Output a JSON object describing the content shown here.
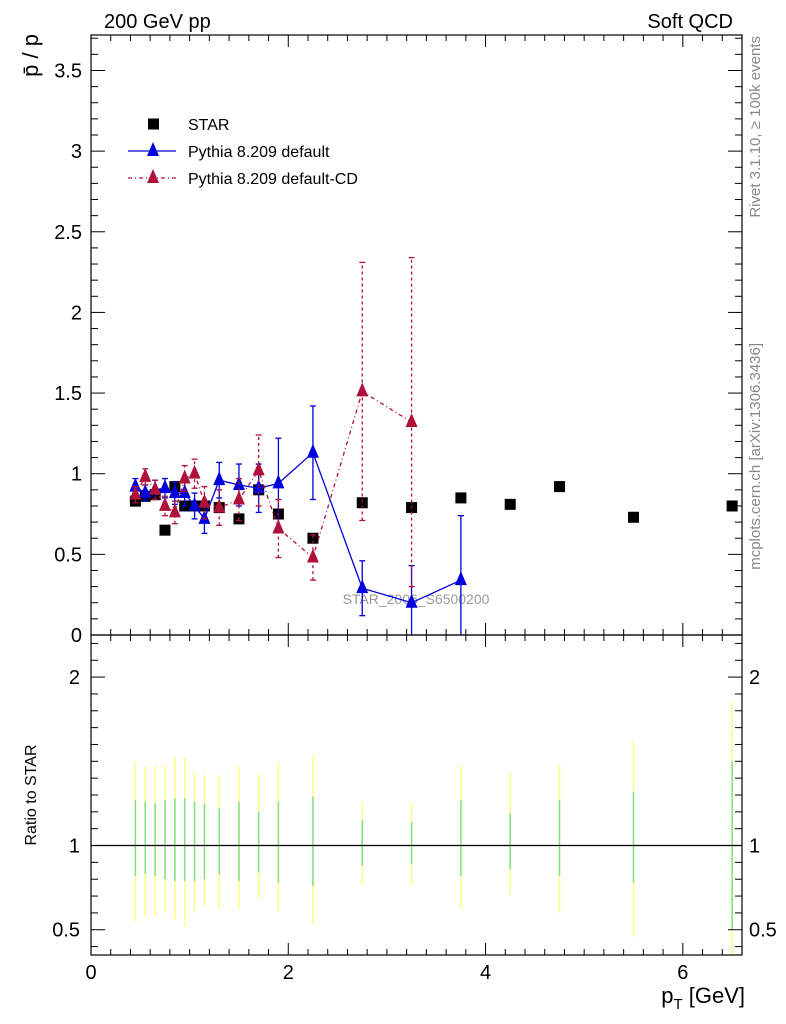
{
  "header": {
    "left": "200 GeV pp",
    "right": "Soft QCD"
  },
  "side_labels": {
    "rivet": "Rivet 3.1.10, ≥ 100k events",
    "mcplots": "mcplots.cern.ch [arXiv:1306.3436]"
  },
  "watermark": "STAR_2006_S6500200",
  "colors": {
    "star": "#000000",
    "pythia_default": "#0000dd",
    "pythia_cd": "#b0103a",
    "band_yellow": "#ffff80",
    "band_green": "#80e080"
  },
  "legend": [
    {
      "key": "star",
      "label": "STAR"
    },
    {
      "key": "pythia_default",
      "label": "Pythia 8.209 default"
    },
    {
      "key": "pythia_cd",
      "label": "Pythia 8.209 default-CD"
    }
  ],
  "chart_data": [
    {
      "type": "scatter",
      "panel": "main",
      "ylabel": "p̄ / p",
      "xlabel": "",
      "xlim": [
        0,
        6.6
      ],
      "ylim": [
        0,
        3.72
      ],
      "yticks": [
        "0",
        "0.5",
        "1",
        "1.5",
        "2",
        "2.5",
        "3",
        "3.5"
      ],
      "series": [
        {
          "name": "STAR",
          "style": "square",
          "points": [
            {
              "x": 0.45,
              "y": 0.83
            },
            {
              "x": 0.55,
              "y": 0.86
            },
            {
              "x": 0.65,
              "y": 0.87
            },
            {
              "x": 0.75,
              "y": 0.65
            },
            {
              "x": 0.85,
              "y": 0.92
            },
            {
              "x": 0.95,
              "y": 0.8
            },
            {
              "x": 1.05,
              "y": 0.8
            },
            {
              "x": 1.15,
              "y": 0.8
            },
            {
              "x": 1.3,
              "y": 0.79
            },
            {
              "x": 1.5,
              "y": 0.72
            },
            {
              "x": 1.7,
              "y": 0.9
            },
            {
              "x": 1.9,
              "y": 0.75
            },
            {
              "x": 2.25,
              "y": 0.6
            },
            {
              "x": 2.75,
              "y": 0.82
            },
            {
              "x": 3.25,
              "y": 0.79
            },
            {
              "x": 3.75,
              "y": 0.85
            },
            {
              "x": 4.25,
              "y": 0.81
            },
            {
              "x": 4.75,
              "y": 0.92
            },
            {
              "x": 5.5,
              "y": 0.73
            },
            {
              "x": 6.5,
              "y": 0.8
            }
          ]
        },
        {
          "name": "Pythia 8.209 default",
          "style": "triangle-solid",
          "points": [
            {
              "x": 0.45,
              "y": 0.92,
              "err": 0.05
            },
            {
              "x": 0.55,
              "y": 0.88,
              "err": 0.05
            },
            {
              "x": 0.65,
              "y": 0.9,
              "err": 0.06
            },
            {
              "x": 0.75,
              "y": 0.91,
              "err": 0.06
            },
            {
              "x": 0.85,
              "y": 0.88,
              "err": 0.07
            },
            {
              "x": 0.95,
              "y": 0.88,
              "err": 0.08
            },
            {
              "x": 1.05,
              "y": 0.8,
              "err": 0.08
            },
            {
              "x": 1.15,
              "y": 0.72,
              "err": 0.09
            },
            {
              "x": 1.3,
              "y": 0.96,
              "err": 0.11
            },
            {
              "x": 1.5,
              "y": 0.93,
              "err": 0.13
            },
            {
              "x": 1.7,
              "y": 0.91,
              "err": 0.15
            },
            {
              "x": 1.9,
              "y": 0.94,
              "err": 0.28
            },
            {
              "x": 2.25,
              "y": 1.13,
              "err": 0.29
            },
            {
              "x": 2.75,
              "y": 0.29,
              "err": 0.17
            },
            {
              "x": 3.25,
              "y": 0.2,
              "err": 0.23
            },
            {
              "x": 3.75,
              "y": 0.34,
              "err": 0.4
            }
          ]
        },
        {
          "name": "Pythia 8.209 default-CD",
          "style": "triangle-dashdot",
          "points": [
            {
              "x": 0.45,
              "y": 0.87,
              "err": 0.05
            },
            {
              "x": 0.55,
              "y": 0.98,
              "err": 0.05
            },
            {
              "x": 0.65,
              "y": 0.9,
              "err": 0.06
            },
            {
              "x": 0.75,
              "y": 0.8,
              "err": 0.06
            },
            {
              "x": 0.85,
              "y": 0.76,
              "err": 0.07
            },
            {
              "x": 0.95,
              "y": 0.97,
              "err": 0.08
            },
            {
              "x": 1.05,
              "y": 1.0,
              "err": 0.09
            },
            {
              "x": 1.15,
              "y": 0.82,
              "err": 0.1
            },
            {
              "x": 1.3,
              "y": 0.79,
              "err": 0.11
            },
            {
              "x": 1.5,
              "y": 0.84,
              "err": 0.13
            },
            {
              "x": 1.7,
              "y": 1.02,
              "err": 0.22
            },
            {
              "x": 1.9,
              "y": 0.66,
              "err": 0.18
            },
            {
              "x": 2.25,
              "y": 0.48,
              "err": 0.14
            },
            {
              "x": 2.75,
              "y": 1.51,
              "err": 0.8
            },
            {
              "x": 3.25,
              "y": 1.32,
              "err": 1.02
            }
          ]
        }
      ]
    },
    {
      "type": "scatter",
      "panel": "ratio",
      "ylabel": "Ratio to STAR",
      "xlabel": "p_T [GeV]",
      "xlim": [
        0,
        6.6
      ],
      "ylim": [
        0.35,
        2.25
      ],
      "yticks": [
        "0.5",
        "1",
        "2"
      ],
      "xticks": [
        "0",
        "2",
        "4",
        "6"
      ],
      "reference_line": 1,
      "bands": [
        {
          "x": 0.45,
          "yellow": [
            0.55,
            1.5
          ],
          "green": [
            0.82,
            1.27
          ]
        },
        {
          "x": 0.55,
          "yellow": [
            0.58,
            1.47
          ],
          "green": [
            0.83,
            1.26
          ]
        },
        {
          "x": 0.65,
          "yellow": [
            0.58,
            1.47
          ],
          "green": [
            0.82,
            1.25
          ]
        },
        {
          "x": 0.75,
          "yellow": [
            0.6,
            1.48
          ],
          "green": [
            0.8,
            1.27
          ]
        },
        {
          "x": 0.85,
          "yellow": [
            0.56,
            1.52
          ],
          "green": [
            0.79,
            1.28
          ]
        },
        {
          "x": 0.95,
          "yellow": [
            0.52,
            1.52
          ],
          "green": [
            0.79,
            1.28
          ]
        },
        {
          "x": 1.05,
          "yellow": [
            0.6,
            1.44
          ],
          "green": [
            0.79,
            1.26
          ]
        },
        {
          "x": 1.15,
          "yellow": [
            0.64,
            1.42
          ],
          "green": [
            0.8,
            1.25
          ]
        },
        {
          "x": 1.3,
          "yellow": [
            0.63,
            1.42
          ],
          "green": [
            0.83,
            1.22
          ]
        },
        {
          "x": 1.5,
          "yellow": [
            0.62,
            1.47
          ],
          "green": [
            0.79,
            1.26
          ]
        },
        {
          "x": 1.7,
          "yellow": [
            0.68,
            1.42
          ],
          "green": [
            0.84,
            1.2
          ]
        },
        {
          "x": 1.9,
          "yellow": [
            0.61,
            1.49
          ],
          "green": [
            0.78,
            1.26
          ]
        },
        {
          "x": 2.25,
          "yellow": [
            0.53,
            1.54
          ],
          "green": [
            0.76,
            1.29
          ]
        },
        {
          "x": 2.75,
          "yellow": [
            0.77,
            1.26
          ],
          "green": [
            0.88,
            1.15
          ]
        },
        {
          "x": 3.25,
          "yellow": [
            0.77,
            1.25
          ],
          "green": [
            0.89,
            1.14
          ]
        },
        {
          "x": 3.75,
          "yellow": [
            0.62,
            1.48
          ],
          "green": [
            0.82,
            1.27
          ]
        },
        {
          "x": 4.25,
          "yellow": [
            0.71,
            1.43
          ],
          "green": [
            0.86,
            1.19
          ]
        },
        {
          "x": 4.75,
          "yellow": [
            0.6,
            1.48
          ],
          "green": [
            0.82,
            1.27
          ]
        },
        {
          "x": 5.5,
          "yellow": [
            0.46,
            1.62
          ],
          "green": [
            0.78,
            1.32
          ]
        },
        {
          "x": 6.5,
          "yellow": [
            0.35,
            1.85
          ],
          "green": [
            0.5,
            1.5
          ]
        }
      ]
    }
  ]
}
